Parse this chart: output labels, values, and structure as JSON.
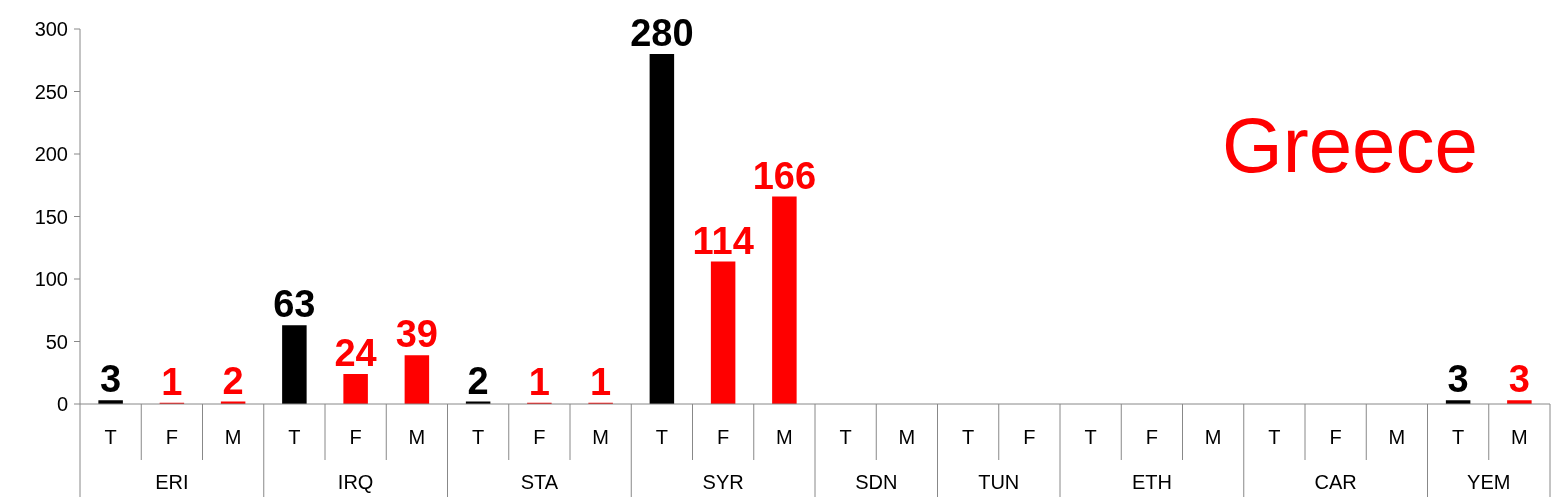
{
  "chart_data": {
    "type": "bar",
    "title": "Greece",
    "categories": [
      "T",
      "F",
      "M",
      "T",
      "F",
      "M",
      "T",
      "F",
      "M",
      "T",
      "F",
      "M",
      "T",
      "M",
      "T",
      "F",
      "T",
      "F",
      "M",
      "T",
      "F",
      "M",
      "T",
      "M"
    ],
    "values": [
      3,
      1,
      2,
      63,
      24,
      39,
      2,
      1,
      1,
      280,
      114,
      166,
      0,
      0,
      0,
      0,
      0,
      0,
      0,
      0,
      0,
      0,
      3,
      3
    ],
    "value_labels": [
      "3",
      "1",
      "2",
      "63",
      "24",
      "39",
      "2",
      "1",
      "1",
      "280",
      "114",
      "166",
      null,
      null,
      null,
      null,
      null,
      null,
      null,
      null,
      null,
      null,
      "3",
      "3"
    ],
    "colors": [
      "#000000",
      "#ff0000",
      "#ff0000",
      "#000000",
      "#ff0000",
      "#ff0000",
      "#000000",
      "#ff0000",
      "#ff0000",
      "#000000",
      "#ff0000",
      "#ff0000",
      "#000000",
      "#ff0000",
      "#000000",
      "#ff0000",
      "#000000",
      "#ff0000",
      "#ff0000",
      "#000000",
      "#ff0000",
      "#ff0000",
      "#000000",
      "#ff0000"
    ],
    "ylim": [
      0,
      300
    ],
    "yticks": [
      0,
      50,
      100,
      150,
      200,
      250,
      300
    ],
    "grid": false,
    "annotations": [
      "ERI",
      "IRQ",
      "STA",
      "SYR",
      "SDN",
      "TUN",
      "ETH",
      "CAR",
      "YEM"
    ]
  }
}
